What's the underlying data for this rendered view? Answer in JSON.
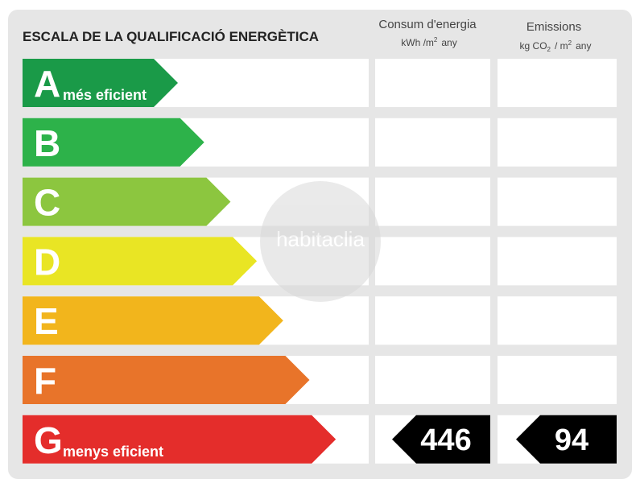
{
  "title": "ESCALA DE LA QUALIFICACIÓ ENERGÈTICA",
  "consumption": {
    "header": "Consum d'energia",
    "unit": [
      "kWh /m",
      "2",
      "any"
    ]
  },
  "emissions": {
    "header": "Emissions",
    "unit": [
      "kg CO",
      "2",
      "/ m",
      "2",
      "any"
    ]
  },
  "rows": [
    {
      "letter": "A",
      "label": "més eficient",
      "color": "#1a9a48"
    },
    {
      "letter": "B",
      "color": "#2db24a"
    },
    {
      "letter": "C",
      "color": "#8cc63f"
    },
    {
      "letter": "D",
      "color": "#e9e524"
    },
    {
      "letter": "E",
      "color": "#f2b51c"
    },
    {
      "letter": "F",
      "color": "#e8742a"
    },
    {
      "letter": "G",
      "label": "menys eficient",
      "color": "#e42d2b",
      "consumption": 446,
      "emissions": 94
    }
  ],
  "watermark": "habitaclia"
}
